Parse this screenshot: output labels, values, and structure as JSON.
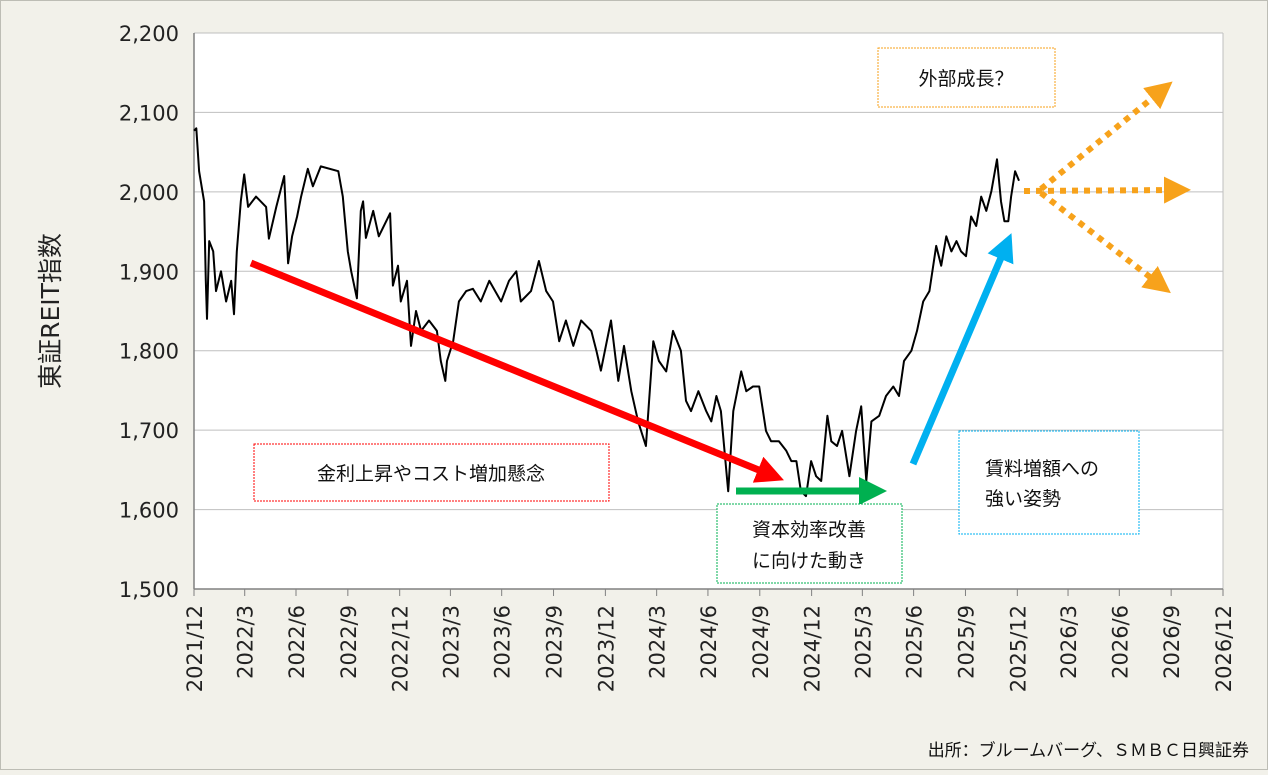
{
  "chart_data": {
    "type": "line",
    "ylabel": "東証REIT指数",
    "xlabel": "",
    "ylim": [
      1500,
      2200
    ],
    "yticks": [
      1500,
      1600,
      1700,
      1800,
      1900,
      2000,
      2100,
      2200
    ],
    "ytick_labels": [
      "1,500",
      "1,600",
      "1,700",
      "1,800",
      "1,900",
      "2,000",
      "2,100",
      "2,200"
    ],
    "xlim": [
      "2021-12-31",
      "2026-12-31"
    ],
    "xticks": [
      "2021-12-31",
      "2022-03-31",
      "2022-06-30",
      "2022-09-30",
      "2022-12-31",
      "2023-03-31",
      "2023-06-30",
      "2023-09-30",
      "2023-12-31",
      "2024-03-31",
      "2024-06-30",
      "2024-09-30",
      "2024-12-31",
      "2025-03-31",
      "2025-06-30",
      "2025-09-30",
      "2025-12-31",
      "2026-03-31",
      "2026-06-30",
      "2026-09-30",
      "2026-12-31"
    ],
    "xtick_labels": [
      "2021/12",
      "2022/3",
      "2022/6",
      "2022/9",
      "2022/12",
      "2023/3",
      "2023/6",
      "2023/9",
      "2023/12",
      "2024/3",
      "2024/6",
      "2024/9",
      "2024/12",
      "2025/3",
      "2025/6",
      "2025/9",
      "2025/12",
      "2026/3",
      "2026/6",
      "2026/9",
      "2026/12"
    ],
    "grid": "horizontal",
    "line_color": "#000000",
    "series": [
      {
        "points": [
          [
            "2021-12-31",
            2077
          ],
          [
            "2022-01-04",
            2080
          ],
          [
            "2022-01-09",
            2026
          ],
          [
            "2022-01-18",
            1988
          ],
          [
            "2022-01-21",
            1888
          ],
          [
            "2022-01-23",
            1840
          ],
          [
            "2022-01-27",
            1938
          ],
          [
            "2022-02-03",
            1925
          ],
          [
            "2022-02-08",
            1875
          ],
          [
            "2022-02-17",
            1900
          ],
          [
            "2022-02-26",
            1862
          ],
          [
            "2022-03-07",
            1888
          ],
          [
            "2022-03-12",
            1846
          ],
          [
            "2022-03-17",
            1925
          ],
          [
            "2022-03-24",
            1988
          ],
          [
            "2022-03-30",
            2022
          ],
          [
            "2022-04-06",
            1981
          ],
          [
            "2022-04-20",
            1994
          ],
          [
            "2022-05-08",
            1981
          ],
          [
            "2022-05-13",
            1941
          ],
          [
            "2022-05-26",
            1981
          ],
          [
            "2022-06-09",
            2020
          ],
          [
            "2022-06-16",
            1910
          ],
          [
            "2022-06-23",
            1944
          ],
          [
            "2022-07-02",
            1969
          ],
          [
            "2022-07-09",
            1994
          ],
          [
            "2022-07-21",
            2029
          ],
          [
            "2022-07-30",
            2007
          ],
          [
            "2022-08-13",
            2032
          ],
          [
            "2022-09-13",
            2026
          ],
          [
            "2022-09-21",
            1994
          ],
          [
            "2022-09-30",
            1925
          ],
          [
            "2022-10-06",
            1900
          ],
          [
            "2022-10-16",
            1866
          ],
          [
            "2022-10-23",
            1976
          ],
          [
            "2022-10-27",
            1988
          ],
          [
            "2022-11-01",
            1942
          ],
          [
            "2022-11-14",
            1976
          ],
          [
            "2022-11-24",
            1944
          ],
          [
            "2022-12-14",
            1973
          ],
          [
            "2022-12-19",
            1882
          ],
          [
            "2022-12-28",
            1907
          ],
          [
            "2023-01-02",
            1862
          ],
          [
            "2023-01-13",
            1888
          ],
          [
            "2023-01-20",
            1806
          ],
          [
            "2023-01-29",
            1850
          ],
          [
            "2023-02-07",
            1825
          ],
          [
            "2023-02-21",
            1838
          ],
          [
            "2023-03-07",
            1825
          ],
          [
            "2023-03-14",
            1787
          ],
          [
            "2023-03-22",
            1762
          ],
          [
            "2023-03-25",
            1787
          ],
          [
            "2023-04-05",
            1812
          ],
          [
            "2023-04-15",
            1862
          ],
          [
            "2023-04-28",
            1875
          ],
          [
            "2023-05-10",
            1878
          ],
          [
            "2023-05-24",
            1862
          ],
          [
            "2023-06-08",
            1888
          ],
          [
            "2023-06-29",
            1862
          ],
          [
            "2023-07-13",
            1888
          ],
          [
            "2023-07-26",
            1900
          ],
          [
            "2023-08-03",
            1862
          ],
          [
            "2023-08-21",
            1875
          ],
          [
            "2023-09-04",
            1913
          ],
          [
            "2023-09-17",
            1875
          ],
          [
            "2023-09-29",
            1862
          ],
          [
            "2023-10-10",
            1812
          ],
          [
            "2023-10-22",
            1838
          ],
          [
            "2023-11-04",
            1806
          ],
          [
            "2023-11-18",
            1838
          ],
          [
            "2023-12-06",
            1825
          ],
          [
            "2023-12-15",
            1800
          ],
          [
            "2023-12-23",
            1775
          ],
          [
            "2024-01-10",
            1838
          ],
          [
            "2024-01-23",
            1762
          ],
          [
            "2024-02-02",
            1806
          ],
          [
            "2024-02-15",
            1749
          ],
          [
            "2024-02-27",
            1711
          ],
          [
            "2024-03-12",
            1680
          ],
          [
            "2024-03-25",
            1812
          ],
          [
            "2024-04-04",
            1787
          ],
          [
            "2024-04-17",
            1774
          ],
          [
            "2024-04-29",
            1825
          ],
          [
            "2024-05-13",
            1800
          ],
          [
            "2024-05-22",
            1737
          ],
          [
            "2024-05-31",
            1724
          ],
          [
            "2024-06-13",
            1749
          ],
          [
            "2024-06-27",
            1724
          ],
          [
            "2024-07-06",
            1711
          ],
          [
            "2024-07-15",
            1743
          ],
          [
            "2024-07-23",
            1724
          ],
          [
            "2024-08-05",
            1623
          ],
          [
            "2024-08-14",
            1724
          ],
          [
            "2024-08-28",
            1774
          ],
          [
            "2024-09-06",
            1749
          ],
          [
            "2024-09-18",
            1755
          ],
          [
            "2024-09-29",
            1755
          ],
          [
            "2024-10-11",
            1699
          ],
          [
            "2024-10-20",
            1686
          ],
          [
            "2024-11-03",
            1686
          ],
          [
            "2024-11-16",
            1674
          ],
          [
            "2024-11-25",
            1661
          ],
          [
            "2024-12-04",
            1661
          ],
          [
            "2024-12-12",
            1623
          ],
          [
            "2024-12-21",
            1617
          ],
          [
            "2024-12-30",
            1661
          ],
          [
            "2025-01-08",
            1642
          ],
          [
            "2025-01-17",
            1636
          ],
          [
            "2025-01-28",
            1718
          ],
          [
            "2025-02-04",
            1686
          ],
          [
            "2025-02-14",
            1680
          ],
          [
            "2025-02-23",
            1699
          ],
          [
            "2025-03-08",
            1642
          ],
          [
            "2025-03-20",
            1699
          ],
          [
            "2025-03-29",
            1730
          ],
          [
            "2025-04-07",
            1636
          ],
          [
            "2025-04-16",
            1711
          ],
          [
            "2025-04-30",
            1718
          ],
          [
            "2025-05-12",
            1743
          ],
          [
            "2025-05-25",
            1755
          ],
          [
            "2025-06-04",
            1743
          ],
          [
            "2025-06-13",
            1787
          ],
          [
            "2025-06-26",
            1800
          ],
          [
            "2025-07-06",
            1825
          ],
          [
            "2025-07-17",
            1862
          ],
          [
            "2025-07-28",
            1875
          ],
          [
            "2025-08-09",
            1932
          ],
          [
            "2025-08-18",
            1907
          ],
          [
            "2025-08-27",
            1944
          ],
          [
            "2025-09-05",
            1925
          ],
          [
            "2025-09-14",
            1938
          ],
          [
            "2025-09-22",
            1925
          ],
          [
            "2025-10-01",
            1919
          ],
          [
            "2025-10-10",
            1969
          ],
          [
            "2025-10-19",
            1957
          ],
          [
            "2025-10-28",
            1994
          ],
          [
            "2025-11-06",
            1976
          ],
          [
            "2025-11-15",
            2001
          ],
          [
            "2025-11-25",
            2041
          ],
          [
            "2025-12-02",
            1988
          ],
          [
            "2025-12-08",
            1963
          ],
          [
            "2025-12-15",
            1963
          ],
          [
            "2025-12-20",
            1994
          ],
          [
            "2025-12-27",
            2026
          ],
          [
            "2026-01-03",
            2014
          ]
        ]
      }
    ],
    "annotations": {
      "external_growth": {
        "text": "外部成長？",
        "color": "#f7a21b"
      },
      "rate_concern": {
        "text": "金利上昇やコスト増加懸念",
        "color": "#ff0000"
      },
      "capital_efficiency": {
        "line1": "資本効率改善",
        "line2": "に向けた動き",
        "color": "#00b050"
      },
      "rent_increase": {
        "line1": "賃料増額への",
        "line2": "強い姿勢",
        "color": "#00b0f0"
      }
    },
    "source": "出所：ブルームバーグ、ＳＭＢＣ日興証券"
  }
}
